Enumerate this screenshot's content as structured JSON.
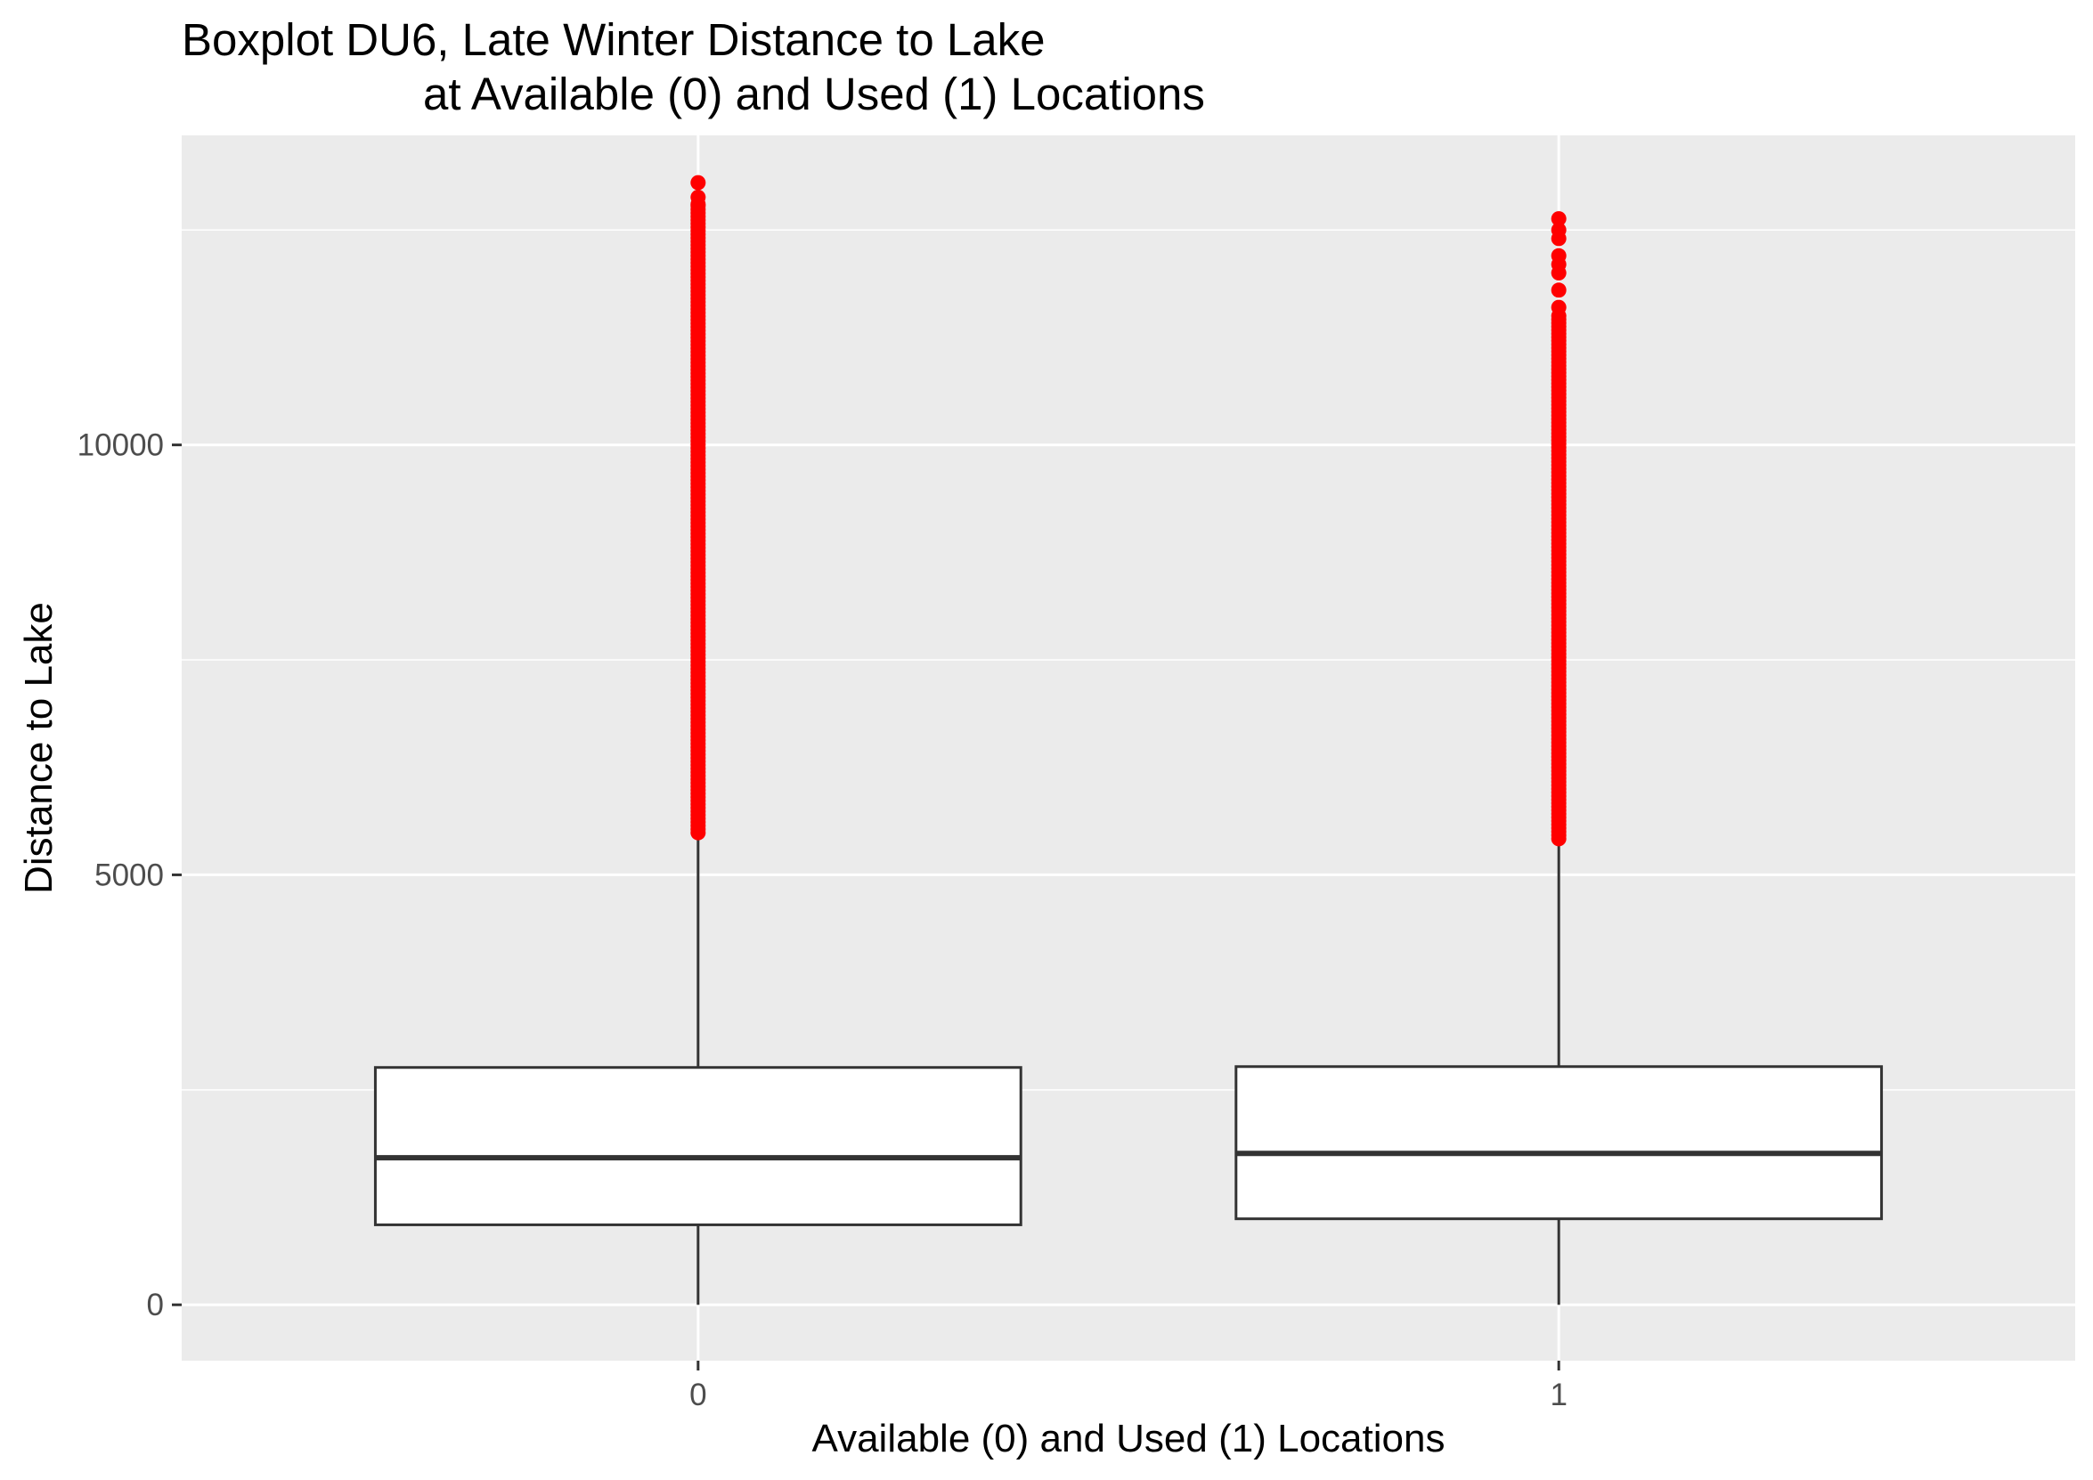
{
  "chart_data": {
    "type": "boxplot",
    "title": [
      "Boxplot DU6, Late Winter Distance to Lake",
      "at Available (0) and Used (1) Locations"
    ],
    "xlabel": "Available (0) and Used (1) Locations",
    "ylabel": "Distance to Lake",
    "ylim": [
      -650,
      13600
    ],
    "y_ticks": [
      0,
      5000,
      10000
    ],
    "y_tick_labels": [
      "0",
      "5000",
      "10000"
    ],
    "y_minor_gridlines": [
      2500,
      7500,
      12500
    ],
    "grid": true,
    "panel_background": "#ebebeb",
    "gridline_color": "#ffffff",
    "box_outline_color": "#333333",
    "outlier_color": "#ff0000",
    "categories": [
      "0",
      "1"
    ],
    "boxes": [
      {
        "category": "0",
        "whisker_low": 0,
        "q1": 930,
        "median": 1710,
        "q3": 2760,
        "whisker_high": 5490,
        "outliers_range": [
          5490,
          12780
        ],
        "outliers_isolated": [
          13050,
          12880,
          12800
        ]
      },
      {
        "category": "1",
        "whisker_low": 0,
        "q1": 1000,
        "median": 1760,
        "q3": 2770,
        "whisker_high": 5420,
        "outliers_range": [
          5420,
          11500
        ],
        "outliers_isolated": [
          12630,
          12500,
          12400,
          12200,
          12100,
          12000,
          11800,
          11600
        ]
      }
    ]
  }
}
